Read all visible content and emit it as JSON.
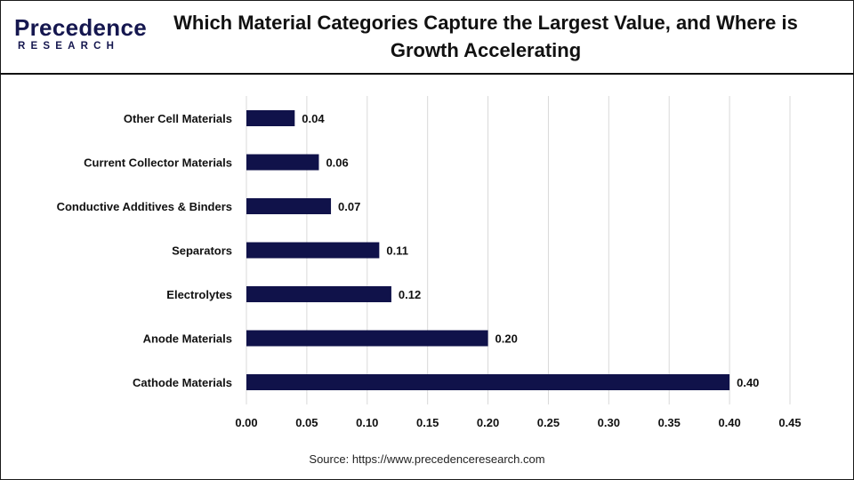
{
  "brand": {
    "name": "Precedence",
    "tagline": "RESEARCH"
  },
  "title": "Which Material Categories Capture the Largest Value, and Where is Growth Accelerating",
  "source": "Source: https://www.precedenceresearch.com",
  "colors": {
    "bar": "#10124a",
    "grid": "#d9d9d9",
    "brand": "#15174f"
  },
  "chart_data": {
    "type": "bar",
    "orientation": "horizontal",
    "categories": [
      "Other Cell Materials",
      "Current Collector Materials",
      "Conductive Additives & Binders",
      "Separators",
      "Electrolytes",
      "Anode Materials",
      "Cathode Materials"
    ],
    "values": [
      0.04,
      0.06,
      0.07,
      0.11,
      0.12,
      0.2,
      0.4
    ],
    "value_labels": [
      "0.04",
      "0.06",
      "0.07",
      "0.11",
      "0.12",
      "0.20",
      "0.40"
    ],
    "xticks": [
      "0.00",
      "0.05",
      "0.10",
      "0.15",
      "0.20",
      "0.25",
      "0.30",
      "0.35",
      "0.40",
      "0.45"
    ],
    "xlim": [
      0,
      0.45
    ],
    "grid": true,
    "legend": "none",
    "xlabel": "",
    "ylabel": ""
  }
}
